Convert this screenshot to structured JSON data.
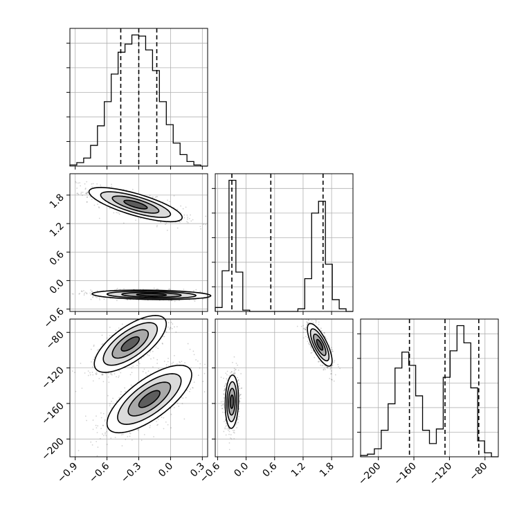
{
  "chart_data": {
    "type": "corner",
    "parameters": [
      {
        "index": 0,
        "axis_label": "",
        "range": [
          -0.95,
          0.35
        ],
        "ticks": [
          -0.9,
          -0.6,
          -0.3,
          0.0,
          0.3
        ],
        "tick_labels": [
          "−0.9",
          "−0.6",
          "−0.3",
          "0.0",
          "0.3"
        ],
        "quantiles": [
          -0.47,
          -0.3,
          -0.13
        ]
      },
      {
        "index": 1,
        "axis_label": "",
        "range": [
          -0.65,
          2.25
        ],
        "ticks": [
          -0.6,
          0.0,
          0.6,
          1.2,
          1.8
        ],
        "tick_labels": [
          "−0.6",
          "0.0",
          "0.6",
          "1.2",
          "1.8"
        ],
        "quantiles": [
          -0.3,
          0.52,
          1.62
        ]
      },
      {
        "index": 2,
        "axis_label": "",
        "range": [
          -220,
          -65
        ],
        "ticks": [
          -200,
          -160,
          -120,
          -80
        ],
        "tick_labels": [
          "−200",
          "−160",
          "−120",
          "−80"
        ],
        "quantiles": [
          -165,
          -125,
          -87
        ]
      }
    ],
    "histograms": [
      {
        "param": 0,
        "bin_edges": [
          -0.95,
          -0.885,
          -0.82,
          -0.755,
          -0.69,
          -0.625,
          -0.56,
          -0.495,
          -0.43,
          -0.365,
          -0.3,
          -0.235,
          -0.17,
          -0.105,
          -0.04,
          0.025,
          0.09,
          0.155,
          0.22,
          0.285,
          0.35
        ],
        "counts": [
          1,
          3,
          7,
          18,
          35,
          56,
          80,
          99,
          106,
          114,
          113,
          101,
          83,
          56,
          36,
          20,
          10,
          4,
          1,
          0
        ]
      },
      {
        "param": 1,
        "bin_edges": [
          -0.65,
          -0.505,
          -0.36,
          -0.215,
          -0.07,
          0.075,
          0.22,
          0.365,
          0.51,
          0.655,
          0.8,
          0.945,
          1.09,
          1.235,
          1.38,
          1.525,
          1.67,
          1.815,
          1.96,
          2.105,
          2.25
        ],
        "counts": [
          3,
          31,
          100,
          30,
          1,
          0,
          0,
          0,
          0,
          0,
          0,
          0,
          2,
          25,
          75,
          84,
          36,
          9,
          2,
          0
        ]
      },
      {
        "param": 2,
        "bin_edges": [
          -220,
          -212.25,
          -204.5,
          -196.75,
          -189,
          -181.25,
          -173.5,
          -165.75,
          -158,
          -150.25,
          -142.5,
          -134.75,
          -127,
          -119.25,
          -111.5,
          -103.75,
          -96,
          -88.25,
          -80.5,
          -72.75,
          -65
        ],
        "counts": [
          1,
          2,
          6,
          20,
          40,
          67,
          79,
          69,
          46,
          20,
          10,
          21,
          60,
          80,
          99,
          86,
          52,
          12,
          3,
          0
        ]
      }
    ],
    "pair_plots": [
      {
        "x_param": 0,
        "y_param": 1,
        "clusters": [
          {
            "center": [
              -0.33,
              1.6
            ],
            "sx": 0.22,
            "sy": 0.18,
            "rho": -0.75,
            "weight": 0.5
          },
          {
            "center": [
              -0.18,
              -0.3
            ],
            "sx": 0.28,
            "sy": 0.05,
            "rho": -0.2,
            "weight": 0.5
          }
        ]
      },
      {
        "x_param": 0,
        "y_param": 2,
        "clusters": [
          {
            "center": [
              -0.38,
              -93
            ],
            "sx": 0.17,
            "sy": 16,
            "rho": 0.7,
            "weight": 0.5
          },
          {
            "center": [
              -0.2,
              -155
            ],
            "sx": 0.2,
            "sy": 19,
            "rho": 0.72,
            "weight": 0.5
          }
        ]
      },
      {
        "x_param": 1,
        "y_param": 2,
        "clusters": [
          {
            "center": [
              1.55,
              -94
            ],
            "sx": 0.13,
            "sy": 12,
            "rho": -0.75,
            "weight": 0.5
          },
          {
            "center": [
              -0.3,
              -158
            ],
            "sx": 0.07,
            "sy": 15,
            "rho": 0.1,
            "weight": 0.5
          }
        ]
      }
    ],
    "grid": true,
    "contour_levels_sigma": [
      0.5,
      1.0,
      1.5,
      2.0
    ],
    "quantile_line_style": "dashed",
    "colors": {
      "points": "#000000",
      "contour": "#000000",
      "grid": "#b0b0b0",
      "background": "#ffffff"
    }
  }
}
